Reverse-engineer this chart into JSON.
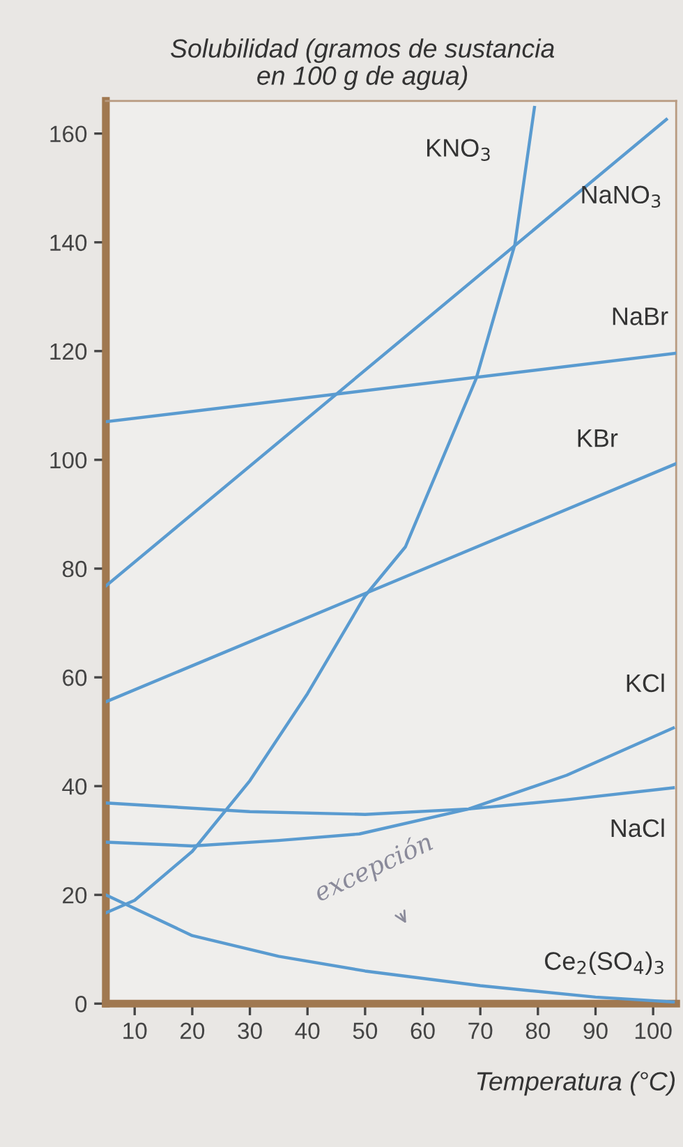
{
  "chart_data": {
    "type": "line",
    "ylabel": "Solubilidad (gramos de sustancia\nen 100 g de agua)",
    "xlabel": "Temperatura (°C)",
    "annotations": [
      "excepción"
    ],
    "xlim": [
      5,
      104
    ],
    "ylim": [
      0,
      166
    ],
    "xticks": [
      10,
      20,
      30,
      40,
      50,
      60,
      70,
      80,
      90,
      100
    ],
    "yticks": [
      0,
      20,
      40,
      60,
      80,
      100,
      120,
      140,
      160
    ],
    "series": [
      {
        "name": "KNO$_{3}$",
        "color": "#5a9bd0",
        "x": [
          5,
          10,
          20,
          30,
          40,
          50,
          57,
          69.3,
          76,
          79.4
        ],
        "values": [
          16.7,
          19,
          28,
          41,
          57,
          75,
          84,
          115,
          139.6,
          164.8
        ]
      },
      {
        "name": "NaNO$_{3}$",
        "color": "#5a9bd0",
        "x": [
          5,
          102.3
        ],
        "values": [
          76.8,
          162.6
        ]
      },
      {
        "name": "NaBr",
        "color": "#5a9bd0",
        "x": [
          5,
          104
        ],
        "values": [
          107,
          119.6
        ]
      },
      {
        "name": "KBr",
        "color": "#5a9bd0",
        "x": [
          5,
          104
        ],
        "values": [
          55.5,
          99.3
        ]
      },
      {
        "name": "KCl",
        "color": "#5a9bd0",
        "x": [
          5,
          20,
          35,
          49,
          68,
          85,
          103.5
        ],
        "values": [
          29.7,
          29,
          30,
          31.2,
          35.8,
          42,
          50.7
        ]
      },
      {
        "name": "NaCl",
        "color": "#5a9bd0",
        "x": [
          5,
          30,
          50,
          68,
          85,
          103.5
        ],
        "values": [
          36.9,
          35.3,
          34.8,
          35.8,
          37.5,
          39.7
        ]
      },
      {
        "name": "Ce$_{2}$(SO$_{4}$)$_{3}$",
        "color": "#5a9bd0",
        "x": [
          5,
          20,
          35,
          50,
          70,
          90,
          103.5
        ],
        "values": [
          20,
          12.5,
          8.7,
          6,
          3.3,
          1.2,
          0.3
        ]
      }
    ]
  }
}
